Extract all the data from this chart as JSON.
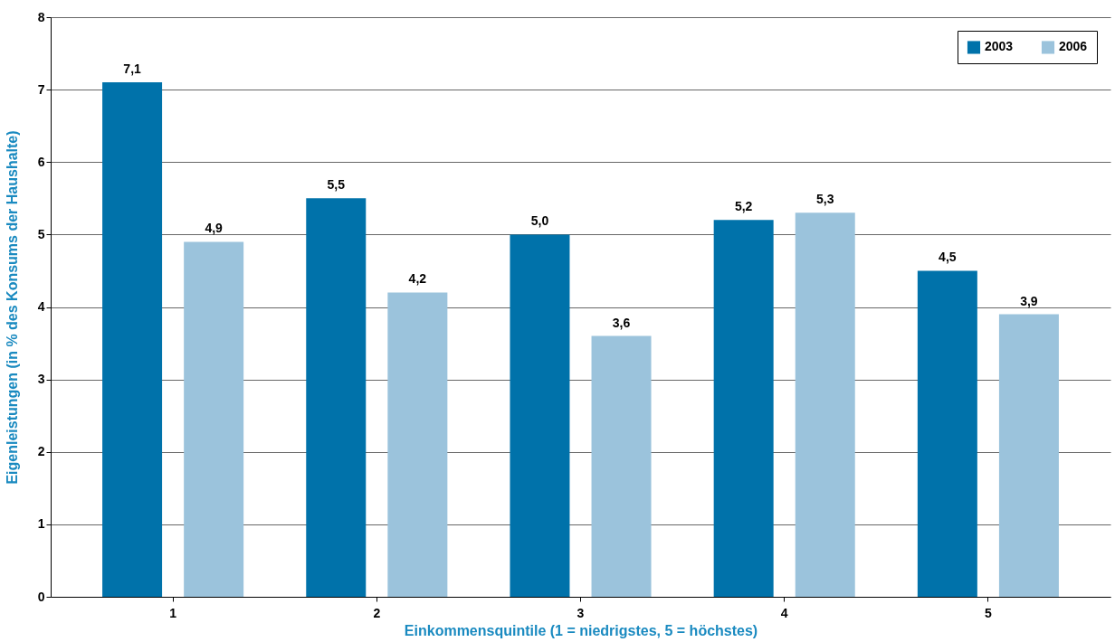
{
  "chart_data": {
    "type": "bar",
    "xlabel": "Einkommensquintile (1 = niedrigstes, 5 = höchstes)",
    "ylabel": "Eigenleistungen (in % des Konsums der Haushalte)",
    "categories": [
      "1",
      "2",
      "3",
      "4",
      "5"
    ],
    "series": [
      {
        "name": "2003",
        "color": "#0072aa",
        "values": [
          7.1,
          5.5,
          5.0,
          5.2,
          4.5
        ],
        "value_labels": [
          "7,1",
          "5,5",
          "5,0",
          "5,2",
          "4,5"
        ]
      },
      {
        "name": "2006",
        "color": "#9bc3dc",
        "values": [
          4.9,
          4.2,
          3.6,
          5.3,
          3.9
        ],
        "value_labels": [
          "4,9",
          "4,2",
          "3,6",
          "5,3",
          "3,9"
        ]
      }
    ],
    "ylim": [
      0,
      8
    ],
    "yticks": [
      0,
      1,
      2,
      3,
      4,
      5,
      6,
      7,
      8
    ],
    "grid": "y",
    "legend": "top right"
  }
}
